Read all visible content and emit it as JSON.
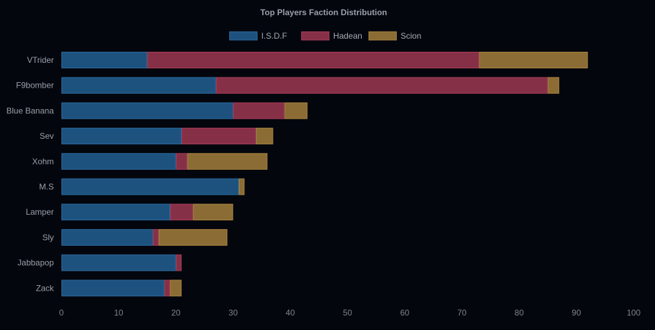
{
  "chart_data": {
    "type": "bar",
    "orientation": "horizontal",
    "stacked": true,
    "title": "Top Players Faction Distribution",
    "categories": [
      "VTrider",
      "F9bomber",
      "Blue Banana",
      "Sev",
      "Xohm",
      "M.S",
      "Lamper",
      "Sly",
      "Jabbapop",
      "Zack"
    ],
    "series": [
      {
        "name": "I.S.D.F",
        "color": "#1e527e",
        "border": "#2a6aa0",
        "values": [
          15,
          27,
          30,
          21,
          20,
          31,
          19,
          16,
          20,
          18
        ]
      },
      {
        "name": "Hadean",
        "color": "#863047",
        "border": "#a83d59",
        "values": [
          58,
          58,
          9,
          13,
          2,
          0,
          4,
          1,
          1,
          1
        ]
      },
      {
        "name": "Scion",
        "color": "#8b6c35",
        "border": "#a8843f",
        "values": [
          19,
          2,
          4,
          3,
          14,
          1,
          7,
          12,
          0,
          2
        ]
      }
    ],
    "xlim": [
      0,
      100
    ],
    "xticks": [
      0,
      10,
      20,
      30,
      40,
      50,
      60,
      70,
      80,
      90,
      100
    ],
    "xlabel": "",
    "ylabel": "",
    "legend": "top",
    "grid": false
  }
}
